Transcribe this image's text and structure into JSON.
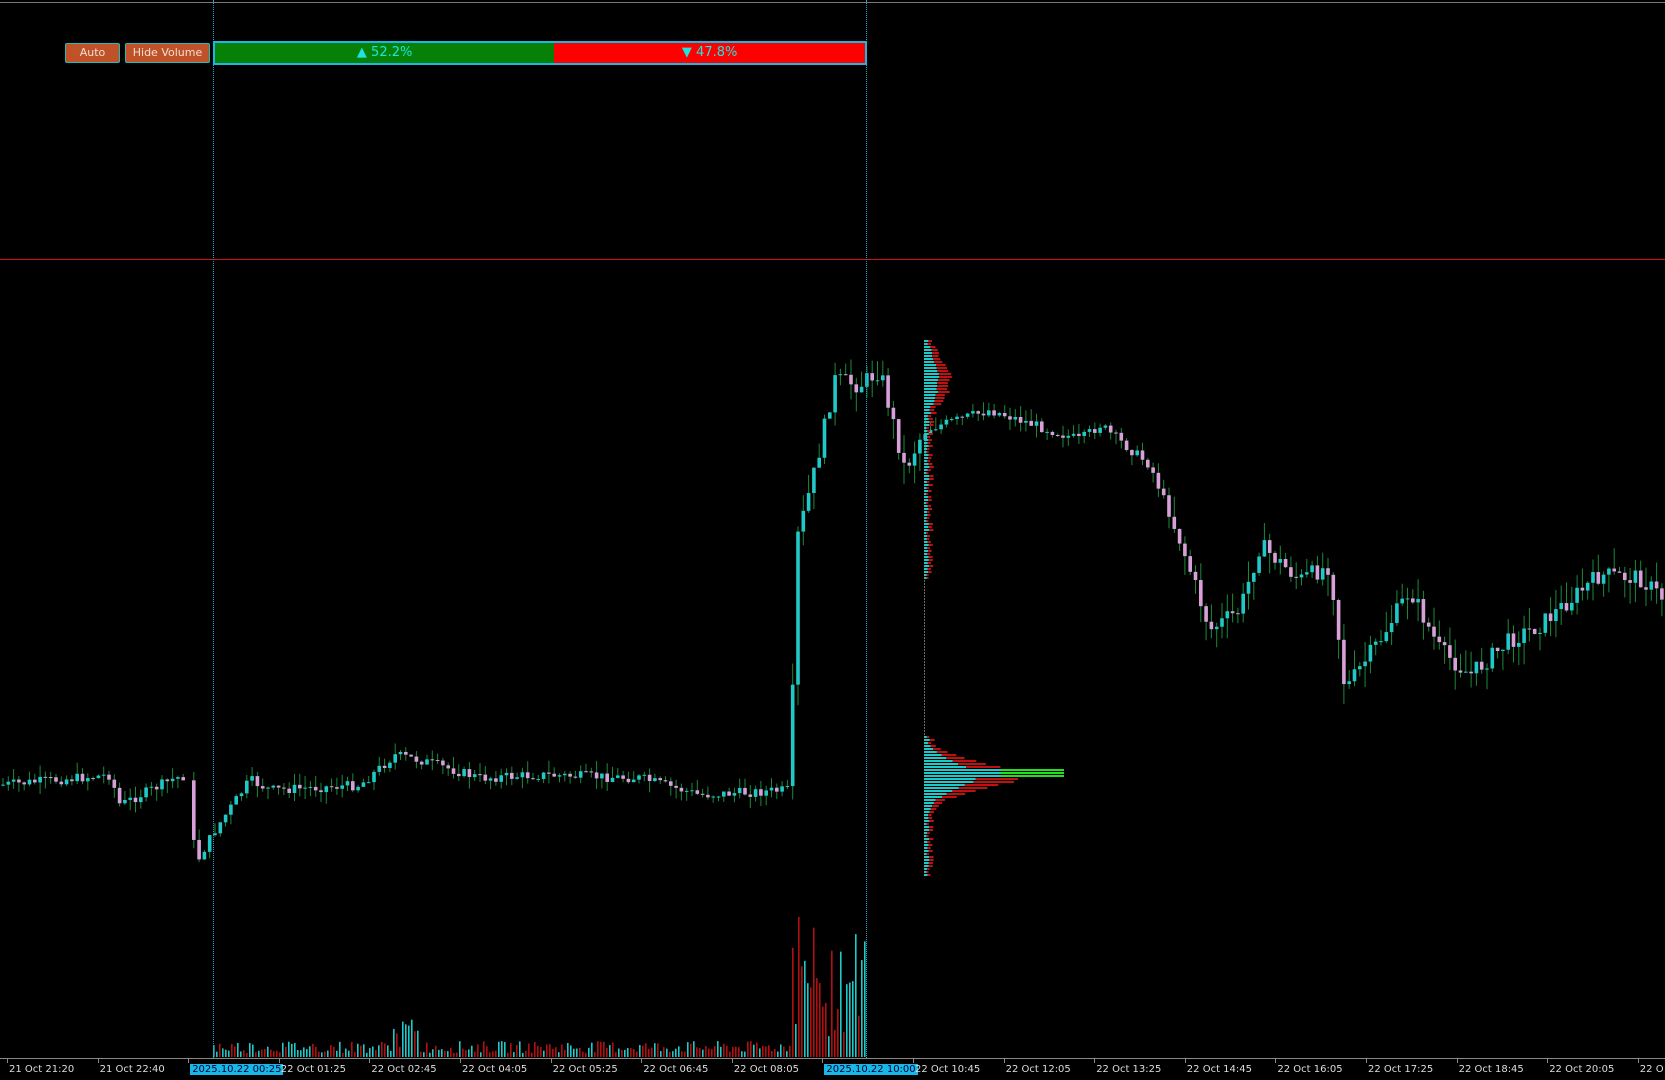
{
  "toolbar": {
    "auto_label": "Auto",
    "hide_volume_label": "Hide Volume"
  },
  "ratio": {
    "buy_label": "▲ 52.2%",
    "sell_label": "▼ 47.8%",
    "buy_percent": 52.2,
    "sell_percent": 47.8,
    "buy_color": "#078007",
    "sell_color": "#ff0000"
  },
  "colors": {
    "bull": "#20c8c8",
    "bear": "#d8a0d8",
    "wick": "#1a8a3a",
    "volume_up": "#20c8c8",
    "volume_down": "#b01010",
    "profile_up": "#20c8c8",
    "profile_down": "#c01010",
    "poc": "#20e020",
    "level_line": "#d01010"
  },
  "time_axis": {
    "labels": [
      "21 Oct 21:20",
      "21 Oct 22:40",
      "2025.10.22 00:25",
      "22 Oct 01:25",
      "22 Oct 02:45",
      "22 Oct 04:05",
      "22 Oct 05:25",
      "22 Oct 06:45",
      "22 Oct 08:05",
      "2025.10.22 10:00",
      "22 Oct 10:45",
      "22 Oct 12:05",
      "22 Oct 13:25",
      "22 Oct 14:45",
      "22 Oct 16:05",
      "22 Oct 17:25",
      "22 Oct 18:45",
      "22 Oct 20:05",
      "22 O"
    ],
    "highlighted": [
      2,
      9
    ]
  }
}
